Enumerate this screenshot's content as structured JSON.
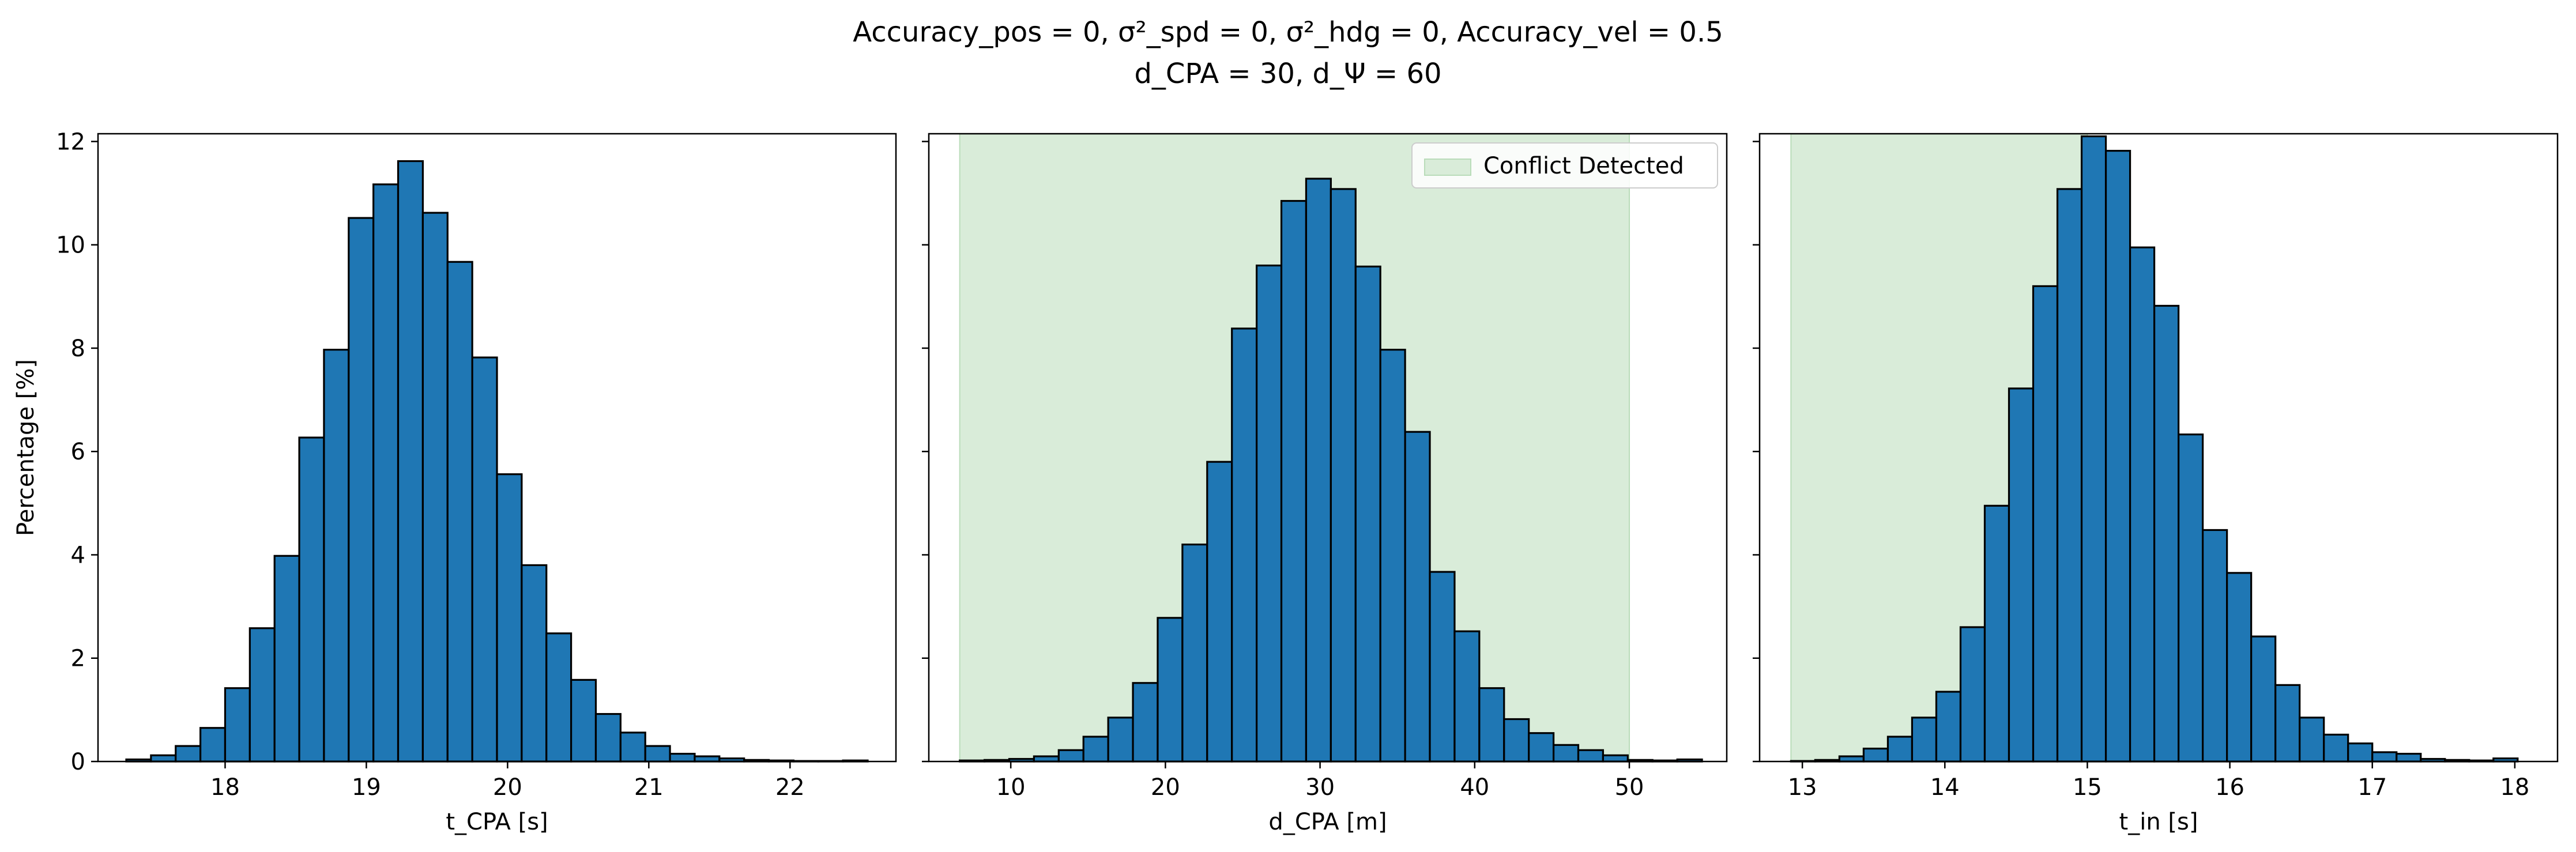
{
  "figure": {
    "title_line1": "Accuracy_pos = 0, σ²_spd = 0, σ²_hdg = 0, Accuracy_vel = 0.5",
    "title_line2": "d_CPA = 30, d_Ψ = 60"
  },
  "colors": {
    "bar_fill": "#1f77b4",
    "bar_edge": "#000000",
    "conflict_fill": "#d9ecd9",
    "conflict_edge": "#b9dcb9"
  },
  "chart_data": [
    {
      "type": "bar",
      "title": "",
      "xlabel": "t_CPA [s]",
      "ylabel": "Percentage [%]",
      "xlim": [
        17.1,
        22.75
      ],
      "ylim": [
        0,
        12.15
      ],
      "xticks": [
        18,
        19,
        20,
        21,
        22
      ],
      "yticks": [
        0,
        2,
        4,
        6,
        8,
        10,
        12
      ],
      "bin_edges": [
        17.3,
        17.475,
        17.65,
        17.825,
        18.0,
        18.175,
        18.35,
        18.525,
        18.7,
        18.875,
        19.05,
        19.225,
        19.4,
        19.575,
        19.75,
        19.925,
        20.1,
        20.275,
        20.45,
        20.625,
        20.8,
        20.975,
        21.15,
        21.325,
        21.5,
        21.675,
        21.85,
        22.025,
        22.2,
        22.375,
        22.55
      ],
      "values": [
        0.04,
        0.12,
        0.3,
        0.65,
        1.42,
        2.58,
        3.98,
        6.27,
        7.97,
        10.52,
        11.17,
        11.62,
        10.62,
        9.67,
        7.82,
        5.56,
        3.8,
        2.48,
        1.58,
        0.92,
        0.56,
        0.3,
        0.15,
        0.1,
        0.06,
        0.03,
        0.02,
        0.01,
        0.01,
        0.02
      ],
      "grid": false
    },
    {
      "type": "bar",
      "title": "",
      "xlabel": "d_CPA [m]",
      "ylabel": "",
      "xlim": [
        4.7,
        56.3
      ],
      "ylim": [
        0,
        12.15
      ],
      "xticks": [
        10,
        20,
        30,
        40,
        50
      ],
      "yticks": [
        0,
        2,
        4,
        6,
        8,
        10,
        12
      ],
      "bin_edges": [
        6.7,
        8.3,
        9.9,
        11.5,
        13.1,
        14.7,
        16.3,
        17.9,
        19.5,
        21.1,
        22.7,
        24.3,
        25.9,
        27.5,
        29.1,
        30.7,
        32.3,
        33.9,
        35.5,
        37.1,
        38.7,
        40.3,
        41.9,
        43.5,
        45.1,
        46.7,
        48.3,
        49.9,
        51.5,
        53.1,
        54.7
      ],
      "values": [
        0.02,
        0.03,
        0.05,
        0.1,
        0.22,
        0.48,
        0.85,
        1.52,
        2.78,
        4.2,
        5.8,
        8.38,
        9.6,
        10.85,
        11.28,
        11.08,
        9.58,
        7.97,
        6.38,
        3.67,
        2.52,
        1.42,
        0.82,
        0.55,
        0.32,
        0.22,
        0.12,
        0.03,
        0.02,
        0.04
      ],
      "shaded_region": {
        "label": "Conflict Detected",
        "x_from": 6.7,
        "x_to": 50.0
      },
      "legend": {
        "entries": [
          "Conflict Detected"
        ],
        "placement": "upper right"
      },
      "grid": false
    },
    {
      "type": "bar",
      "title": "",
      "xlabel": "t_in [s]",
      "ylabel": "",
      "xlim": [
        12.7,
        18.3
      ],
      "ylim": [
        0,
        12.15
      ],
      "xticks": [
        13,
        14,
        15,
        16,
        17,
        18
      ],
      "yticks": [
        0,
        2,
        4,
        6,
        8,
        10,
        12
      ],
      "bin_edges": [
        12.92,
        13.09,
        13.26,
        13.43,
        13.6,
        13.77,
        13.94,
        14.11,
        14.28,
        14.45,
        14.62,
        14.79,
        14.96,
        15.13,
        15.3,
        15.47,
        15.64,
        15.81,
        15.98,
        16.15,
        16.32,
        16.49,
        16.66,
        16.83,
        17.0,
        17.17,
        17.34,
        17.51,
        17.68,
        17.85,
        18.02
      ],
      "values": [
        0.01,
        0.03,
        0.1,
        0.25,
        0.48,
        0.85,
        1.35,
        2.6,
        4.95,
        7.22,
        9.2,
        11.08,
        12.1,
        11.82,
        9.95,
        8.82,
        6.33,
        4.48,
        3.65,
        2.42,
        1.48,
        0.85,
        0.52,
        0.35,
        0.18,
        0.15,
        0.05,
        0.03,
        0.02,
        0.06
      ],
      "shaded_region": {
        "label": "",
        "x_from": 12.92,
        "x_to": 15.0
      },
      "grid": false
    }
  ]
}
